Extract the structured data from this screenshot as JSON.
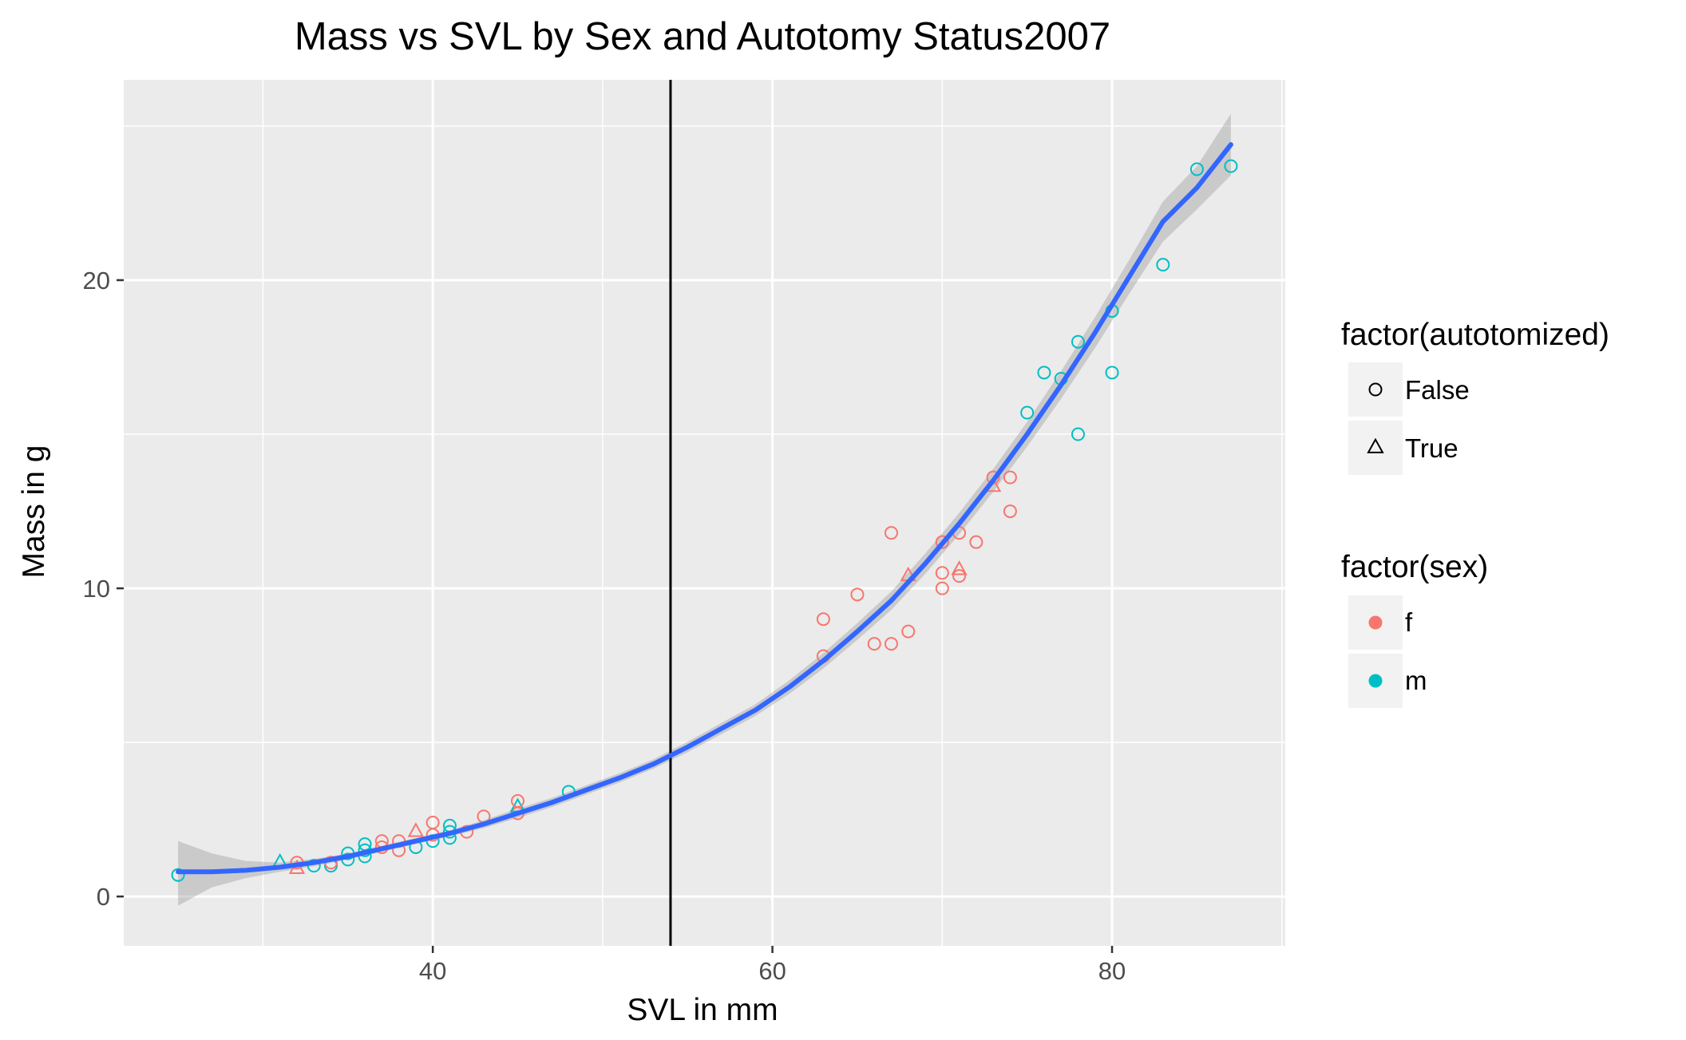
{
  "chart_data": {
    "type": "scatter",
    "title": "Mass vs SVL by Sex and Autotomy Status2007",
    "xlabel": "SVL in mm",
    "ylabel": "Mass in g",
    "xlim": [
      21.8,
      90.2
    ],
    "ylim": [
      -1.6,
      26.5
    ],
    "x_ticks": [
      40,
      60,
      80
    ],
    "y_ticks": [
      0,
      10,
      20
    ],
    "x_tick_labels": [
      "40",
      "60",
      "80"
    ],
    "y_tick_labels": [
      "0",
      "10",
      "20"
    ],
    "x_minor_ticks": [
      30,
      50,
      70,
      90
    ],
    "y_minor_ticks": [
      5,
      15,
      25
    ],
    "grid": true,
    "vline": 54,
    "colors": {
      "f": "#F8766D",
      "m": "#00BFC4",
      "smooth": "#3366FF",
      "band": "#999999",
      "panel": "#EBEBEB",
      "grid": "#ffffff",
      "vline": "#000000"
    },
    "legends": [
      {
        "title": "factor(autotomized)",
        "entries": [
          {
            "label": "False",
            "shape": "circle"
          },
          {
            "label": "True",
            "shape": "triangle"
          }
        ]
      },
      {
        "title": "factor(sex)",
        "entries": [
          {
            "label": "f",
            "color": "#F8766D"
          },
          {
            "label": "m",
            "color": "#00BFC4"
          }
        ]
      }
    ],
    "points": [
      {
        "x": 25,
        "y": 0.7,
        "sex": "m",
        "aut": "False"
      },
      {
        "x": 31,
        "y": 1.1,
        "sex": "m",
        "aut": "True"
      },
      {
        "x": 32,
        "y": 0.9,
        "sex": "f",
        "aut": "True"
      },
      {
        "x": 32,
        "y": 1.1,
        "sex": "f",
        "aut": "False"
      },
      {
        "x": 33,
        "y": 1.0,
        "sex": "m",
        "aut": "False"
      },
      {
        "x": 34,
        "y": 1.0,
        "sex": "m",
        "aut": "False"
      },
      {
        "x": 34,
        "y": 1.1,
        "sex": "f",
        "aut": "False"
      },
      {
        "x": 35,
        "y": 1.2,
        "sex": "m",
        "aut": "False"
      },
      {
        "x": 35,
        "y": 1.4,
        "sex": "m",
        "aut": "False"
      },
      {
        "x": 36,
        "y": 1.3,
        "sex": "m",
        "aut": "False"
      },
      {
        "x": 36,
        "y": 1.5,
        "sex": "m",
        "aut": "False"
      },
      {
        "x": 36,
        "y": 1.7,
        "sex": "m",
        "aut": "False"
      },
      {
        "x": 37,
        "y": 1.6,
        "sex": "f",
        "aut": "False"
      },
      {
        "x": 37,
        "y": 1.8,
        "sex": "f",
        "aut": "False"
      },
      {
        "x": 38,
        "y": 1.5,
        "sex": "f",
        "aut": "False"
      },
      {
        "x": 38,
        "y": 1.8,
        "sex": "f",
        "aut": "False"
      },
      {
        "x": 39,
        "y": 2.1,
        "sex": "f",
        "aut": "True"
      },
      {
        "x": 39,
        "y": 1.6,
        "sex": "m",
        "aut": "False"
      },
      {
        "x": 40,
        "y": 1.8,
        "sex": "m",
        "aut": "False"
      },
      {
        "x": 40,
        "y": 2.0,
        "sex": "f",
        "aut": "False"
      },
      {
        "x": 40,
        "y": 2.4,
        "sex": "f",
        "aut": "False"
      },
      {
        "x": 41,
        "y": 1.9,
        "sex": "m",
        "aut": "False"
      },
      {
        "x": 41,
        "y": 2.1,
        "sex": "m",
        "aut": "False"
      },
      {
        "x": 41,
        "y": 2.3,
        "sex": "m",
        "aut": "False"
      },
      {
        "x": 42,
        "y": 2.1,
        "sex": "f",
        "aut": "False"
      },
      {
        "x": 43,
        "y": 2.6,
        "sex": "f",
        "aut": "False"
      },
      {
        "x": 45,
        "y": 2.7,
        "sex": "f",
        "aut": "False"
      },
      {
        "x": 45,
        "y": 2.9,
        "sex": "m",
        "aut": "True"
      },
      {
        "x": 45,
        "y": 3.1,
        "sex": "f",
        "aut": "False"
      },
      {
        "x": 48,
        "y": 3.4,
        "sex": "m",
        "aut": "False"
      },
      {
        "x": 63,
        "y": 7.8,
        "sex": "f",
        "aut": "False"
      },
      {
        "x": 63,
        "y": 9.0,
        "sex": "f",
        "aut": "False"
      },
      {
        "x": 65,
        "y": 9.8,
        "sex": "f",
        "aut": "False"
      },
      {
        "x": 66,
        "y": 8.2,
        "sex": "f",
        "aut": "False"
      },
      {
        "x": 67,
        "y": 8.2,
        "sex": "f",
        "aut": "False"
      },
      {
        "x": 67,
        "y": 11.8,
        "sex": "f",
        "aut": "False"
      },
      {
        "x": 68,
        "y": 8.6,
        "sex": "f",
        "aut": "False"
      },
      {
        "x": 68,
        "y": 10.4,
        "sex": "f",
        "aut": "True"
      },
      {
        "x": 70,
        "y": 10.0,
        "sex": "f",
        "aut": "False"
      },
      {
        "x": 70,
        "y": 10.5,
        "sex": "f",
        "aut": "False"
      },
      {
        "x": 70,
        "y": 11.5,
        "sex": "f",
        "aut": "False"
      },
      {
        "x": 71,
        "y": 10.4,
        "sex": "f",
        "aut": "False"
      },
      {
        "x": 71,
        "y": 10.6,
        "sex": "f",
        "aut": "True"
      },
      {
        "x": 71,
        "y": 11.8,
        "sex": "f",
        "aut": "False"
      },
      {
        "x": 72,
        "y": 11.5,
        "sex": "f",
        "aut": "False"
      },
      {
        "x": 73,
        "y": 13.3,
        "sex": "f",
        "aut": "True"
      },
      {
        "x": 73,
        "y": 13.6,
        "sex": "f",
        "aut": "False"
      },
      {
        "x": 74,
        "y": 12.5,
        "sex": "f",
        "aut": "False"
      },
      {
        "x": 74,
        "y": 13.6,
        "sex": "f",
        "aut": "False"
      },
      {
        "x": 75,
        "y": 15.7,
        "sex": "m",
        "aut": "False"
      },
      {
        "x": 76,
        "y": 17.0,
        "sex": "m",
        "aut": "False"
      },
      {
        "x": 77,
        "y": 16.8,
        "sex": "m",
        "aut": "False"
      },
      {
        "x": 78,
        "y": 15.0,
        "sex": "m",
        "aut": "False"
      },
      {
        "x": 78,
        "y": 18.0,
        "sex": "m",
        "aut": "False"
      },
      {
        "x": 80,
        "y": 17.0,
        "sex": "m",
        "aut": "False"
      },
      {
        "x": 80,
        "y": 19.0,
        "sex": "m",
        "aut": "False"
      },
      {
        "x": 83,
        "y": 20.5,
        "sex": "m",
        "aut": "False"
      },
      {
        "x": 85,
        "y": 23.6,
        "sex": "m",
        "aut": "False"
      },
      {
        "x": 87,
        "y": 23.7,
        "sex": "m",
        "aut": "False"
      }
    ],
    "smooth": {
      "x": [
        25,
        27,
        29,
        31,
        33,
        35,
        37,
        39,
        41,
        43,
        45,
        47,
        49,
        51,
        53,
        55,
        57,
        59,
        61,
        63,
        65,
        67,
        69,
        71,
        73,
        75,
        77,
        79,
        81,
        83,
        85,
        87
      ],
      "y": [
        0.8,
        0.8,
        0.85,
        0.95,
        1.1,
        1.3,
        1.55,
        1.8,
        2.05,
        2.35,
        2.7,
        3.05,
        3.45,
        3.85,
        4.3,
        4.85,
        5.45,
        6.05,
        6.8,
        7.65,
        8.6,
        9.6,
        10.8,
        12.1,
        13.5,
        15.0,
        16.6,
        18.3,
        20.1,
        21.9,
        23.0,
        24.4
      ],
      "lower": [
        -0.3,
        0.3,
        0.6,
        0.8,
        0.98,
        1.2,
        1.45,
        1.7,
        1.95,
        2.22,
        2.55,
        2.9,
        3.3,
        3.7,
        4.15,
        4.68,
        5.27,
        5.86,
        6.58,
        7.4,
        8.33,
        9.3,
        10.47,
        11.75,
        13.13,
        14.6,
        16.15,
        17.8,
        19.55,
        21.25,
        22.3,
        23.4
      ],
      "upper": [
        1.8,
        1.4,
        1.15,
        1.1,
        1.22,
        1.4,
        1.65,
        1.9,
        2.15,
        2.48,
        2.85,
        3.2,
        3.6,
        4.0,
        4.45,
        5.02,
        5.63,
        6.24,
        7.02,
        7.9,
        8.87,
        9.9,
        11.13,
        12.45,
        13.87,
        15.4,
        17.05,
        18.8,
        20.65,
        22.55,
        23.7,
        25.4
      ]
    }
  }
}
